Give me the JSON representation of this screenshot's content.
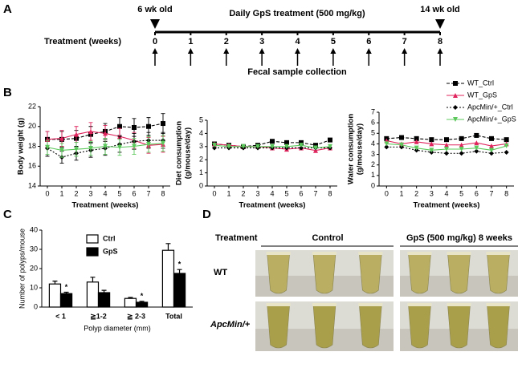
{
  "panel_labels": [
    "A",
    "B",
    "C",
    "D"
  ],
  "timeline": {
    "start_label": "6 wk old",
    "end_label": "14 wk old",
    "treatment_label": "Daily GpS treatment (500 mg/kg)",
    "row_label": "Treatment (weeks)",
    "weeks": [
      0,
      1,
      2,
      3,
      4,
      5,
      6,
      7,
      8
    ],
    "collection_label": "Fecal sample collection"
  },
  "chart_data": [
    {
      "type": "line",
      "ylabel": [
        "Body weight (g)"
      ],
      "xlabel": "Treatment (weeks)",
      "x": [
        0,
        1,
        2,
        3,
        4,
        5,
        6,
        7,
        8
      ],
      "xlim": [
        -0.5,
        8.5
      ],
      "xticks": [
        0,
        1,
        2,
        3,
        4,
        5,
        6,
        7,
        8
      ],
      "ylim": [
        14,
        22
      ],
      "yticks": [
        14,
        16,
        18,
        20,
        22
      ],
      "series": [
        {
          "color": "#000000",
          "marker": "square",
          "dash": "4,2",
          "values": [
            18.7,
            18.7,
            18.8,
            19.2,
            19.5,
            20.0,
            19.9,
            20.0,
            20.3
          ],
          "errors": [
            0.8,
            0.8,
            0.8,
            0.8,
            0.8,
            0.9,
            0.9,
            0.9,
            1.0
          ]
        },
        {
          "color": "#e0245e",
          "marker": "triangle",
          "dash": "none",
          "values": [
            18.7,
            18.8,
            19.2,
            19.5,
            19.3,
            19.0,
            18.6,
            18.1,
            18.2
          ],
          "errors": [
            0.8,
            0.8,
            0.8,
            0.9,
            0.8,
            0.8,
            0.8,
            0.8,
            0.8
          ]
        },
        {
          "color": "#000000",
          "marker": "diamond",
          "dash": "2,2",
          "values": [
            17.8,
            16.9,
            17.3,
            17.6,
            17.8,
            18.2,
            18.5,
            18.6,
            18.6
          ],
          "errors": [
            0.8,
            0.6,
            0.7,
            0.7,
            0.7,
            0.8,
            0.8,
            0.8,
            0.8
          ]
        },
        {
          "color": "#5cc85c",
          "marker": "triangle-down",
          "dash": "none",
          "values": [
            17.9,
            17.6,
            17.7,
            17.8,
            18.0,
            17.9,
            18.0,
            18.2,
            18.3
          ],
          "errors": [
            0.7,
            0.7,
            0.7,
            0.7,
            0.8,
            0.8,
            0.8,
            0.8,
            0.8
          ]
        }
      ]
    },
    {
      "type": "line",
      "ylabel": [
        "Diet consumption",
        "(g/mouse/day)"
      ],
      "xlabel": "Treatment (weeks)",
      "x": [
        0,
        1,
        2,
        3,
        4,
        5,
        6,
        7,
        8
      ],
      "xlim": [
        -0.5,
        8.5
      ],
      "xticks": [
        0,
        1,
        2,
        3,
        4,
        5,
        6,
        7,
        8
      ],
      "ylim": [
        0,
        5
      ],
      "yticks": [
        0,
        1,
        2,
        3,
        4,
        5
      ],
      "series": [
        {
          "color": "#000000",
          "marker": "square",
          "dash": "4,2",
          "values": [
            3.2,
            3.1,
            3.0,
            3.1,
            3.4,
            3.3,
            3.3,
            3.1,
            3.5
          ]
        },
        {
          "color": "#e0245e",
          "marker": "triangle",
          "dash": "none",
          "values": [
            3.2,
            3.1,
            3.0,
            3.0,
            2.9,
            2.8,
            2.9,
            2.7,
            2.9
          ]
        },
        {
          "color": "#000000",
          "marker": "diamond",
          "dash": "2,2",
          "values": [
            2.9,
            2.9,
            2.9,
            2.9,
            2.9,
            2.9,
            2.9,
            2.9,
            2.9
          ]
        },
        {
          "color": "#5cc85c",
          "marker": "triangle-down",
          "dash": "none",
          "values": [
            3.1,
            3.0,
            3.0,
            3.0,
            3.0,
            3.0,
            3.1,
            2.9,
            3.0
          ]
        }
      ]
    },
    {
      "type": "line",
      "ylabel": [
        "Water consumption",
        "(g/mouse/day)"
      ],
      "xlabel": "Treatment (weeks)",
      "x": [
        0,
        1,
        2,
        3,
        4,
        5,
        6,
        7,
        8
      ],
      "xlim": [
        -0.5,
        8.5
      ],
      "xticks": [
        0,
        1,
        2,
        3,
        4,
        5,
        6,
        7,
        8
      ],
      "ylim": [
        0,
        7
      ],
      "yticks": [
        0,
        1,
        2,
        3,
        4,
        5,
        6,
        7
      ],
      "legend": true,
      "series": [
        {
          "name": "WT_Ctrl",
          "color": "#000000",
          "marker": "square",
          "dash": "4,2",
          "values": [
            4.5,
            4.6,
            4.5,
            4.4,
            4.4,
            4.5,
            4.8,
            4.5,
            4.4
          ]
        },
        {
          "name": "WT_GpS",
          "color": "#e0245e",
          "marker": "triangle",
          "dash": "none",
          "values": [
            4.3,
            4.0,
            4.2,
            4.0,
            3.9,
            3.9,
            4.1,
            3.8,
            4.0
          ]
        },
        {
          "name": "ApcMin/+_Ctrl",
          "color": "#000000",
          "marker": "diamond",
          "dash": "2,2",
          "values": [
            3.7,
            3.7,
            3.4,
            3.2,
            3.1,
            3.1,
            3.3,
            3.1,
            3.2
          ]
        },
        {
          "name": "ApcMin/+_GpS",
          "color": "#5cc85c",
          "marker": "triangle-down",
          "dash": "none",
          "values": [
            4.0,
            3.9,
            3.6,
            3.4,
            3.5,
            3.5,
            3.6,
            3.4,
            3.8
          ]
        }
      ]
    },
    {
      "type": "bar",
      "ylabel": [
        "Number of polyps/mouse"
      ],
      "xlabel": "Polyp diameter (mm)",
      "categories": [
        "< 1",
        "≧1-2",
        "≧ 2-3",
        "Total"
      ],
      "ylim": [
        0,
        40
      ],
      "yticks": [
        0,
        10,
        20,
        30,
        40
      ],
      "legend": true,
      "series": [
        {
          "name": "Ctrl",
          "color": "#ffffff",
          "values": [
            12,
            13,
            4.5,
            29.5
          ],
          "errors": [
            1.5,
            2.5,
            0.5,
            3.5
          ]
        },
        {
          "name": "GpS",
          "color": "#000000",
          "values": [
            7,
            7.5,
            2.5,
            17.5
          ],
          "errors": [
            0.7,
            1.2,
            0.5,
            2
          ],
          "annotations": [
            "*",
            null,
            "*",
            "*"
          ]
        }
      ]
    }
  ],
  "photos": {
    "header": "Treatment",
    "groups": [
      "Control",
      "GpS (500 mg/kg) 8 weeks"
    ],
    "rows": [
      "WT",
      "ApcMin/+"
    ]
  }
}
